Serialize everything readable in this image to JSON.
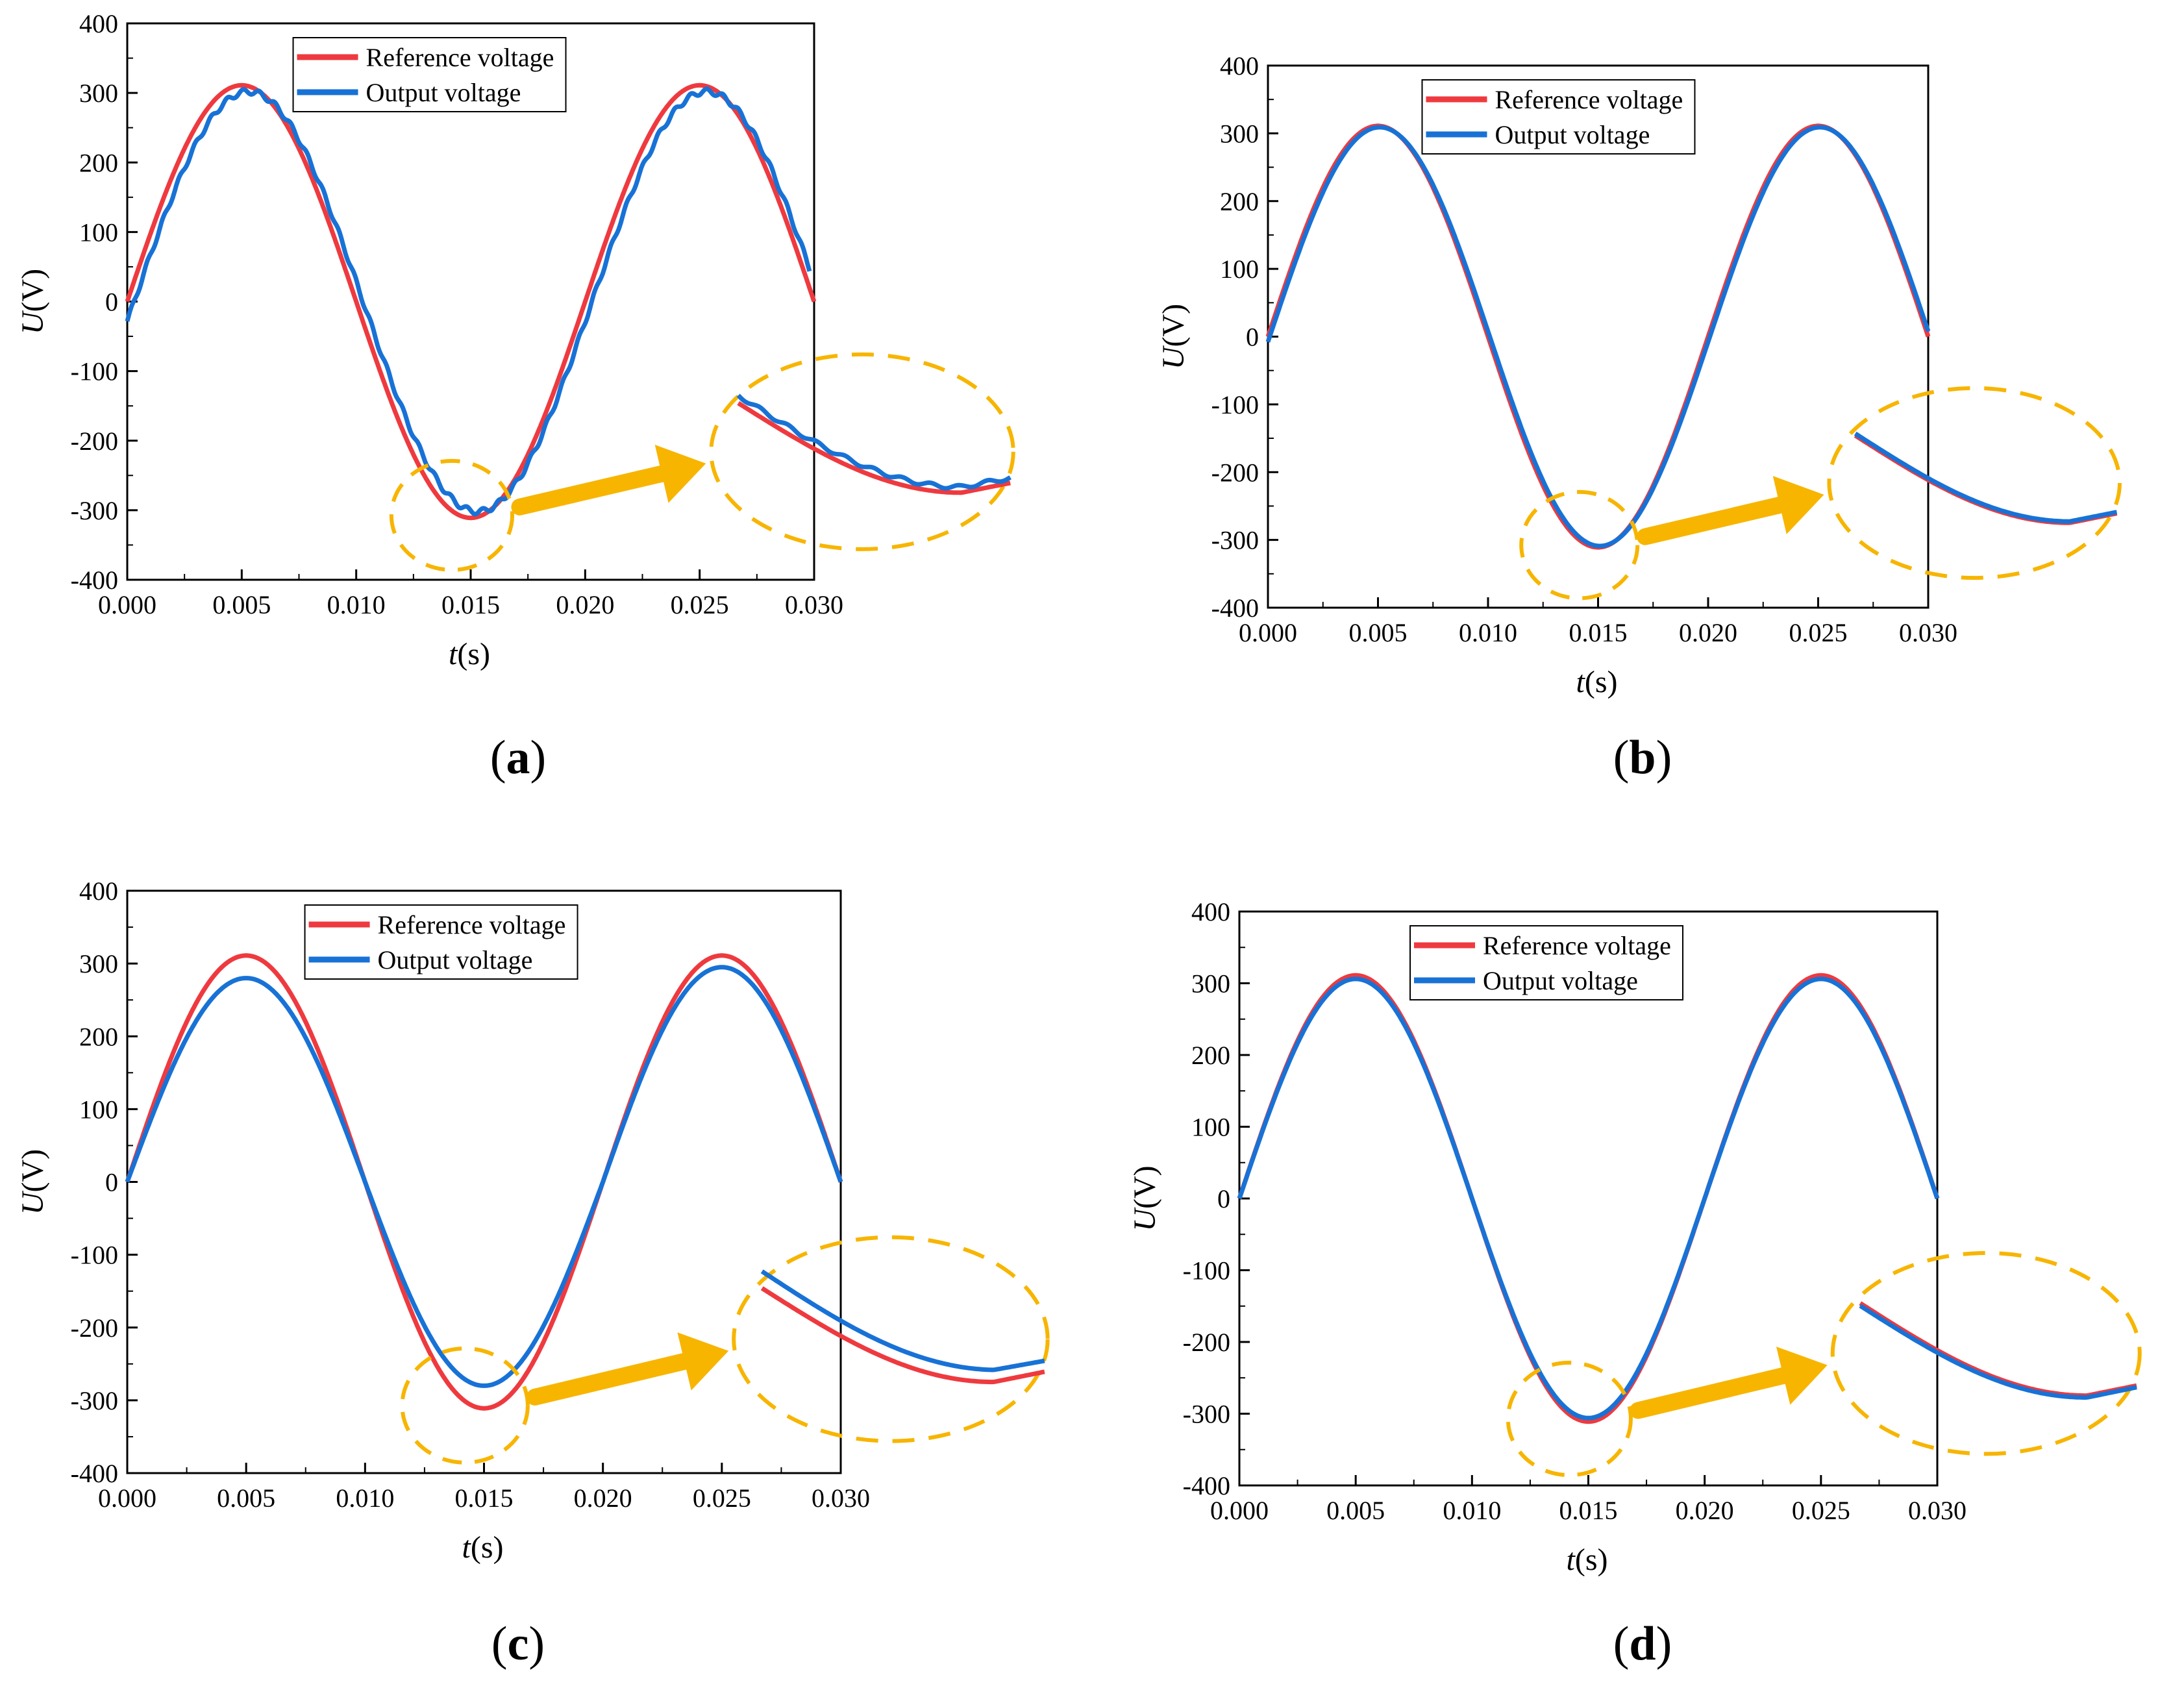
{
  "figure": {
    "captions": [
      "(a)",
      "(b)",
      "(c)",
      "(d)"
    ],
    "caption_letters": [
      "a",
      "b",
      "c",
      "d"
    ]
  },
  "colors": {
    "reference": "#ee3a3f",
    "output": "#1872d6",
    "highlight": "#f7b500",
    "axis": "#000000"
  },
  "chart_data": [
    {
      "id": "a",
      "type": "line",
      "xlabel_italic": "t",
      "xlabel_unit": "(s)",
      "ylabel_italic": "U",
      "ylabel_unit": "(V)",
      "xlim": [
        0,
        0.03
      ],
      "ylim": [
        -400,
        400
      ],
      "xticks": [
        "0.000",
        "0.005",
        "0.010",
        "0.015",
        "0.020",
        "0.025",
        "0.030"
      ],
      "yticks": [
        "400",
        "300",
        "200",
        "100",
        "0",
        "-100",
        "-200",
        "-300",
        "-400"
      ],
      "legend": [
        "Reference voltage",
        "Output voltage"
      ],
      "legend_position": "top-center",
      "series": [
        {
          "name": "Reference voltage",
          "amplitude": 311,
          "frequency_hz": 50,
          "phase_shift_s": 0,
          "x_start": 0,
          "x_end": 0.03
        },
        {
          "name": "Output voltage",
          "amplitude": 302,
          "frequency_hz": 50,
          "phase_shift_s": 0.0003,
          "x_start": 0,
          "x_end": 0.0298
        }
      ],
      "annotation": "zoom of the negative peak near t = 0.015 s"
    },
    {
      "id": "b",
      "type": "line",
      "xlabel_italic": "t",
      "xlabel_unit": "(s)",
      "ylabel_italic": "U",
      "ylabel_unit": "(V)",
      "xlim": [
        0,
        0.03
      ],
      "ylim": [
        -400,
        400
      ],
      "xticks": [
        "0.000",
        "0.005",
        "0.010",
        "0.015",
        "0.020",
        "0.025",
        "0.030"
      ],
      "yticks": [
        "400",
        "300",
        "200",
        "100",
        "0",
        "-100",
        "-200",
        "-300",
        "-400"
      ],
      "legend": [
        "Reference voltage",
        "Output voltage"
      ],
      "legend_position": "top-center",
      "series": [
        {
          "name": "Reference voltage",
          "amplitude": 311,
          "frequency_hz": 50,
          "phase_shift_s": 0,
          "x_start": 0,
          "x_end": 0.03
        },
        {
          "name": "Output voltage",
          "amplitude": 309,
          "frequency_hz": 50,
          "phase_shift_s": 8e-05,
          "x_start": 0,
          "x_end": 0.03
        }
      ],
      "annotation": "zoom of the negative peak near t = 0.015 s"
    },
    {
      "id": "c",
      "type": "line",
      "xlabel_italic": "t",
      "xlabel_unit": "(s)",
      "ylabel_italic": "U",
      "ylabel_unit": "(V)",
      "xlim": [
        0,
        0.03
      ],
      "ylim": [
        -400,
        400
      ],
      "xticks": [
        "0.000",
        "0.005",
        "0.010",
        "0.015",
        "0.020",
        "0.025",
        "0.030"
      ],
      "yticks": [
        "400",
        "300",
        "200",
        "100",
        "0",
        "-100",
        "-200",
        "-300",
        "-400"
      ],
      "legend": [
        "Reference voltage",
        "Output voltage"
      ],
      "legend_position": "top-center",
      "series": [
        {
          "name": "Reference voltage",
          "amplitude": 311,
          "frequency_hz": 50,
          "phase_shift_s": 0,
          "x_start": 0,
          "x_end": 0.03
        },
        {
          "name": "Output voltage",
          "amplitude_first_cycle": 280,
          "amplitude_second_cycle": 295,
          "frequency_hz": 50,
          "phase_shift_s": 0,
          "x_start": 0,
          "x_end": 0.03
        }
      ],
      "annotation": "zoom of the negative peak near t = 0.015 s"
    },
    {
      "id": "d",
      "type": "line",
      "xlabel_italic": "t",
      "xlabel_unit": "(s)",
      "ylabel_italic": "U",
      "ylabel_unit": "(V)",
      "xlim": [
        0,
        0.03
      ],
      "ylim": [
        -400,
        400
      ],
      "xticks": [
        "0.000",
        "0.005",
        "0.010",
        "0.015",
        "0.020",
        "0.025",
        "0.030"
      ],
      "yticks": [
        "400",
        "300",
        "200",
        "100",
        "0",
        "-100",
        "-200",
        "-300",
        "-400"
      ],
      "legend": [
        "Reference voltage",
        "Output voltage"
      ],
      "legend_position": "top-center",
      "series": [
        {
          "name": "Reference voltage",
          "amplitude": 311,
          "frequency_hz": 50,
          "phase_shift_s": 0,
          "x_start": 0,
          "x_end": 0.03
        },
        {
          "name": "Output voltage",
          "amplitude": 306,
          "frequency_hz": 50,
          "phase_shift_s": 0,
          "x_start": 0,
          "x_end": 0.03
        }
      ],
      "annotation": "zoom of the negative peak near t = 0.015 s"
    }
  ]
}
